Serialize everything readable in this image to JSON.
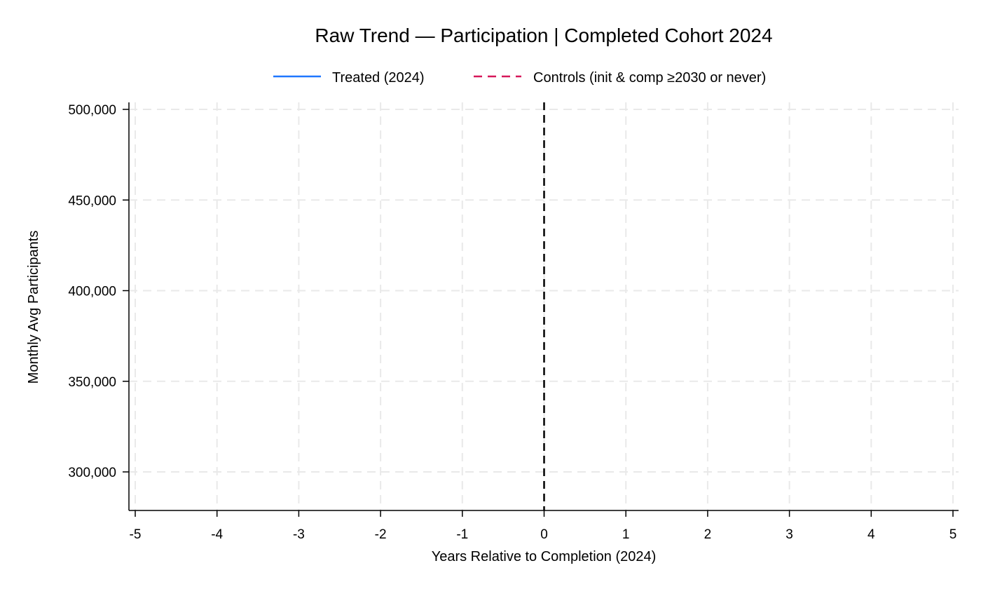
{
  "chart_data": {
    "type": "line",
    "title": "Raw Trend — Participation | Completed Cohort 2024",
    "xlabel": "Years Relative to Completion (2024)",
    "ylabel": "Monthly Avg Participants",
    "xlim": [
      -5,
      5
    ],
    "ylim": [
      279000,
      504000
    ],
    "x_ticks": [
      -5,
      -4,
      -3,
      -2,
      -1,
      0,
      1,
      2,
      3,
      4,
      5
    ],
    "x_tick_labels": [
      "-5",
      "-4",
      "-3",
      "-2",
      "-1",
      "0",
      "1",
      "2",
      "3",
      "4",
      "5"
    ],
    "y_ticks": [
      300000,
      350000,
      400000,
      450000,
      500000
    ],
    "y_tick_labels": [
      "300,000",
      "350,000",
      "400,000",
      "450,000",
      "500,000"
    ],
    "grid": true,
    "legend_position": "top-center",
    "reference_line": {
      "x": 0,
      "style": "dashed",
      "color": "#000000"
    },
    "series": [
      {
        "name": "Treated (2024)",
        "color": "#1f77ff",
        "style": "solid",
        "x": [],
        "y": []
      },
      {
        "name": "Controls (init & comp ≥2030 or never)",
        "color": "#d6185a",
        "style": "dashed",
        "x": [],
        "y": []
      }
    ]
  }
}
